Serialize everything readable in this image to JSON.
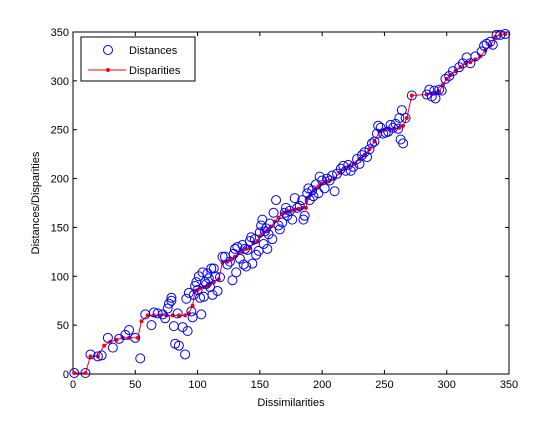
{
  "figure": {
    "xlabel": "Dissimilarities",
    "ylabel": "Distances/Disparities"
  },
  "colors": {
    "distances": "#0000ff",
    "disparities": "#ff0000",
    "axes": "#000000",
    "background": "#ffffff"
  },
  "chart_data": {
    "type": "scatter",
    "title": "",
    "xlabel": "Dissimilarities",
    "ylabel": "Distances/Disparities",
    "xlim": [
      0,
      350
    ],
    "ylim": [
      0,
      350
    ],
    "xticks": [
      0,
      50,
      100,
      150,
      200,
      250,
      300,
      350
    ],
    "yticks": [
      0,
      50,
      100,
      150,
      200,
      250,
      300,
      350
    ],
    "grid": false,
    "legend": {
      "position": "top-left",
      "entries": [
        "Distances",
        "Disparities"
      ]
    },
    "series": [
      {
        "name": "Distances",
        "marker": "open-circle",
        "points": [
          [
            1,
            1
          ],
          [
            10,
            1
          ],
          [
            14,
            20
          ],
          [
            20,
            18
          ],
          [
            23,
            19
          ],
          [
            28,
            37
          ],
          [
            32,
            27
          ],
          [
            37,
            36
          ],
          [
            42,
            40
          ],
          [
            45,
            45
          ],
          [
            50,
            37
          ],
          [
            54,
            16
          ],
          [
            58,
            61
          ],
          [
            63,
            50
          ],
          [
            65,
            63
          ],
          [
            68,
            62
          ],
          [
            72,
            61
          ],
          [
            74,
            57
          ],
          [
            76,
            67
          ],
          [
            77,
            72
          ],
          [
            79,
            75
          ],
          [
            79,
            78
          ],
          [
            81,
            49
          ],
          [
            82,
            31
          ],
          [
            84,
            62
          ],
          [
            85,
            29
          ],
          [
            88,
            48
          ],
          [
            90,
            20
          ],
          [
            91,
            77
          ],
          [
            92,
            44
          ],
          [
            93,
            83
          ],
          [
            95,
            64
          ],
          [
            96,
            58
          ],
          [
            97,
            81
          ],
          [
            98,
            90
          ],
          [
            99,
            94
          ],
          [
            100,
            86
          ],
          [
            101,
            100
          ],
          [
            102,
            78
          ],
          [
            103,
            61
          ],
          [
            104,
            104
          ],
          [
            105,
            79
          ],
          [
            106,
            94
          ],
          [
            107,
            92
          ],
          [
            108,
            103
          ],
          [
            109,
            98
          ],
          [
            110,
            89
          ],
          [
            111,
            108
          ],
          [
            112,
            81
          ],
          [
            113,
            108
          ],
          [
            114,
            100
          ],
          [
            116,
            85
          ],
          [
            118,
            99
          ],
          [
            120,
            120
          ],
          [
            122,
            120
          ],
          [
            124,
            112
          ],
          [
            126,
            115
          ],
          [
            128,
            96
          ],
          [
            129,
            123
          ],
          [
            130,
            128
          ],
          [
            131,
            104
          ],
          [
            132,
            130
          ],
          [
            134,
            118
          ],
          [
            136,
            132
          ],
          [
            137,
            112
          ],
          [
            138,
            128
          ],
          [
            139,
            110
          ],
          [
            140,
            127
          ],
          [
            142,
            136
          ],
          [
            143,
            140
          ],
          [
            144,
            113
          ],
          [
            146,
            138
          ],
          [
            147,
            122
          ],
          [
            149,
            126
          ],
          [
            150,
            145
          ],
          [
            151,
            152
          ],
          [
            152,
            158
          ],
          [
            153,
            133
          ],
          [
            154,
            146
          ],
          [
            155,
            149
          ],
          [
            156,
            128
          ],
          [
            157,
            143
          ],
          [
            158,
            154
          ],
          [
            160,
            138
          ],
          [
            161,
            165
          ],
          [
            163,
            178
          ],
          [
            165,
            152
          ],
          [
            166,
            148
          ],
          [
            168,
            155
          ],
          [
            170,
            165
          ],
          [
            171,
            170
          ],
          [
            172,
            162
          ],
          [
            174,
            167
          ],
          [
            176,
            158
          ],
          [
            178,
            180
          ],
          [
            180,
            170
          ],
          [
            182,
            172
          ],
          [
            184,
            178
          ],
          [
            185,
            158
          ],
          [
            186,
            162
          ],
          [
            188,
            185
          ],
          [
            189,
            190
          ],
          [
            190,
            178
          ],
          [
            192,
            188
          ],
          [
            193,
            182
          ],
          [
            195,
            194
          ],
          [
            197,
            185
          ],
          [
            198,
            202
          ],
          [
            200,
            198
          ],
          [
            202,
            190
          ],
          [
            204,
            200
          ],
          [
            206,
            198
          ],
          [
            208,
            203
          ],
          [
            210,
            187
          ],
          [
            212,
            205
          ],
          [
            215,
            210
          ],
          [
            217,
            213
          ],
          [
            219,
            208
          ],
          [
            221,
            214
          ],
          [
            223,
            208
          ],
          [
            225,
            212
          ],
          [
            228,
            220
          ],
          [
            230,
            215
          ],
          [
            232,
            224
          ],
          [
            234,
            227
          ],
          [
            236,
            222
          ],
          [
            238,
            230
          ],
          [
            240,
            236
          ],
          [
            242,
            238
          ],
          [
            244,
            246
          ],
          [
            245,
            254
          ],
          [
            247,
            252
          ],
          [
            249,
            246
          ],
          [
            251,
            247
          ],
          [
            253,
            248
          ],
          [
            255,
            255
          ],
          [
            257,
            252
          ],
          [
            259,
            256
          ],
          [
            261,
            251
          ],
          [
            262,
            262
          ],
          [
            263,
            240
          ],
          [
            264,
            270
          ],
          [
            265,
            236
          ],
          [
            267,
            262
          ],
          [
            272,
            285
          ],
          [
            284,
            286
          ],
          [
            286,
            291
          ],
          [
            288,
            284
          ],
          [
            290,
            290
          ],
          [
            291,
            282
          ],
          [
            294,
            291
          ],
          [
            296,
            290
          ],
          [
            299,
            302
          ],
          [
            302,
            305
          ],
          [
            305,
            310
          ],
          [
            310,
            314
          ],
          [
            313,
            318
          ],
          [
            316,
            324
          ],
          [
            319,
            318
          ],
          [
            323,
            325
          ],
          [
            328,
            330
          ],
          [
            330,
            336
          ],
          [
            332,
            338
          ],
          [
            335,
            340
          ],
          [
            337,
            337
          ],
          [
            340,
            347
          ],
          [
            343,
            347
          ],
          [
            347,
            348
          ]
        ]
      },
      {
        "name": "Disparities",
        "marker": "line-dot",
        "points": [
          [
            1,
            1
          ],
          [
            10,
            1
          ],
          [
            14,
            18
          ],
          [
            20,
            18
          ],
          [
            25,
            29
          ],
          [
            30,
            33
          ],
          [
            35,
            35
          ],
          [
            40,
            37
          ],
          [
            45,
            37
          ],
          [
            52,
            37
          ],
          [
            55,
            54
          ],
          [
            60,
            60
          ],
          [
            65,
            60
          ],
          [
            70,
            60
          ],
          [
            75,
            60
          ],
          [
            80,
            60
          ],
          [
            85,
            60
          ],
          [
            90,
            60
          ],
          [
            93,
            62
          ],
          [
            96,
            70
          ],
          [
            98,
            85
          ],
          [
            100,
            86
          ],
          [
            102,
            88
          ],
          [
            105,
            89
          ],
          [
            108,
            90
          ],
          [
            110,
            92
          ],
          [
            113,
            94
          ],
          [
            117,
            97
          ],
          [
            120,
            114
          ],
          [
            124,
            115
          ],
          [
            127,
            117
          ],
          [
            130,
            120
          ],
          [
            133,
            124
          ],
          [
            136,
            125
          ],
          [
            139,
            128
          ],
          [
            142,
            129
          ],
          [
            145,
            134
          ],
          [
            148,
            136
          ],
          [
            150,
            141
          ],
          [
            153,
            145
          ],
          [
            156,
            147
          ],
          [
            159,
            151
          ],
          [
            162,
            156
          ],
          [
            165,
            160
          ],
          [
            168,
            164
          ],
          [
            170,
            165
          ],
          [
            172,
            166
          ],
          [
            175,
            167
          ],
          [
            178,
            168
          ],
          [
            181,
            169
          ],
          [
            184,
            170
          ],
          [
            187,
            170
          ],
          [
            189,
            180
          ],
          [
            191,
            184
          ],
          [
            194,
            189
          ],
          [
            197,
            192
          ],
          [
            200,
            195
          ],
          [
            203,
            197
          ],
          [
            206,
            198
          ],
          [
            210,
            200
          ],
          [
            214,
            206
          ],
          [
            218,
            210
          ],
          [
            222,
            213
          ],
          [
            226,
            215
          ],
          [
            230,
            220
          ],
          [
            234,
            224
          ],
          [
            238,
            230
          ],
          [
            242,
            238
          ],
          [
            246,
            248
          ],
          [
            250,
            250
          ],
          [
            254,
            250
          ],
          [
            258,
            251
          ],
          [
            262,
            252
          ],
          [
            265,
            254
          ],
          [
            268,
            262
          ],
          [
            272,
            285
          ],
          [
            284,
            286
          ],
          [
            288,
            287
          ],
          [
            291,
            288
          ],
          [
            294,
            289
          ],
          [
            297,
            296
          ],
          [
            300,
            302
          ],
          [
            303,
            306
          ],
          [
            307,
            310
          ],
          [
            311,
            314
          ],
          [
            315,
            318
          ],
          [
            319,
            319
          ],
          [
            323,
            322
          ],
          [
            327,
            325
          ],
          [
            331,
            331
          ],
          [
            335,
            336
          ],
          [
            339,
            345
          ],
          [
            343,
            347
          ],
          [
            347,
            348
          ]
        ]
      }
    ]
  }
}
